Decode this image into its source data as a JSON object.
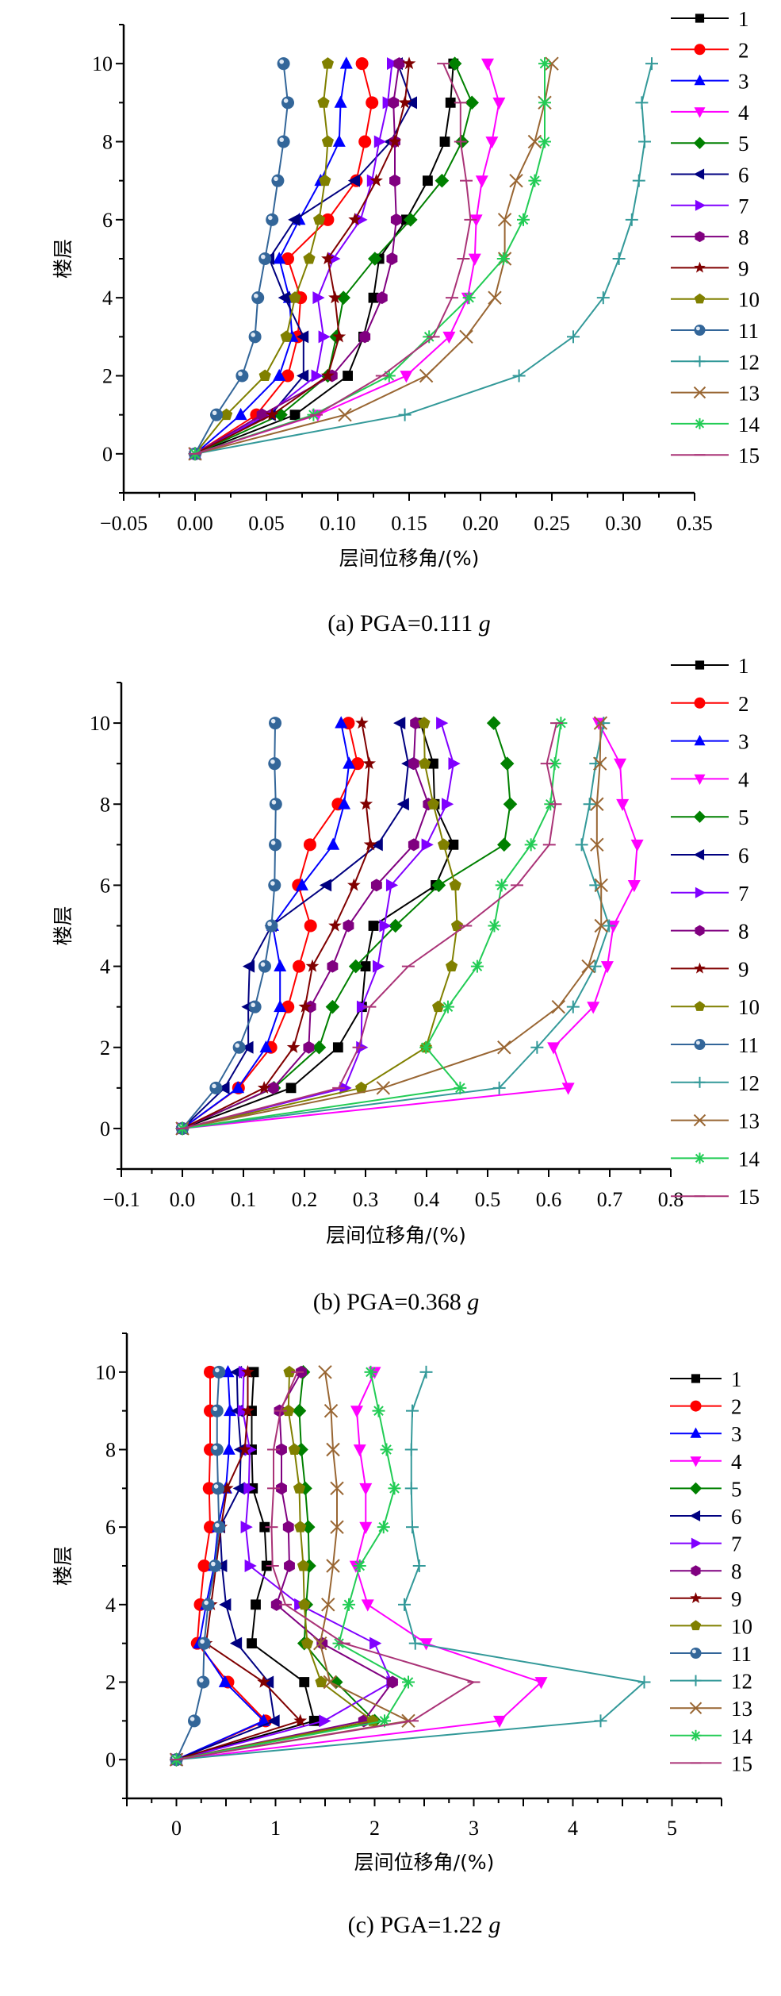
{
  "legend_entries": [
    "1",
    "2",
    "3",
    "4",
    "5",
    "6",
    "7",
    "8",
    "9",
    "10",
    "11",
    "12",
    "13",
    "14",
    "15"
  ],
  "series_styles": [
    {
      "color": "#000000",
      "marker": "square"
    },
    {
      "color": "#ff0000",
      "marker": "circle"
    },
    {
      "color": "#0000ff",
      "marker": "triangle-up"
    },
    {
      "color": "#ff00ff",
      "marker": "triangle-down"
    },
    {
      "color": "#008000",
      "marker": "diamond"
    },
    {
      "color": "#000080",
      "marker": "triangle-left"
    },
    {
      "color": "#8000ff",
      "marker": "triangle-right"
    },
    {
      "color": "#800080",
      "marker": "hexagon"
    },
    {
      "color": "#800000",
      "marker": "star"
    },
    {
      "color": "#808000",
      "marker": "pentagon"
    },
    {
      "color": "#336699",
      "marker": "sphere"
    },
    {
      "color": "#339999",
      "marker": "plus"
    },
    {
      "color": "#996633",
      "marker": "cross"
    },
    {
      "color": "#22cc55",
      "marker": "asterisk"
    },
    {
      "color": "#aa3377",
      "marker": "dash"
    }
  ],
  "chart_data": [
    {
      "type": "line",
      "title": "(a) PGA=0.111 g",
      "caption_prefix": "(a) PGA=0.111 ",
      "caption_unit": "g",
      "xlabel": "层间位移角/(%)",
      "ylabel": "楼层",
      "xlim": [
        -0.05,
        0.35
      ],
      "ylim": [
        -1,
        11
      ],
      "xticks": [
        -0.05,
        0.0,
        0.05,
        0.1,
        0.15,
        0.2,
        0.25,
        0.3,
        0.35
      ],
      "xtick_labels": [
        "−0.05",
        "0.00",
        "0.05",
        "0.10",
        "0.15",
        "0.20",
        "0.25",
        "0.30",
        "0.35"
      ],
      "yticks": [
        0,
        2,
        4,
        6,
        8,
        10
      ],
      "ytick_labels": [
        "0",
        "2",
        "4",
        "6",
        "8",
        "10"
      ],
      "legend_position": "right",
      "floors": [
        0,
        1,
        2,
        3,
        4,
        5,
        6,
        7,
        8,
        9,
        10
      ],
      "series": [
        {
          "name": "1",
          "values": [
            0,
            0.07,
            0.107,
            0.118,
            0.125,
            0.129,
            0.148,
            0.163,
            0.175,
            0.179,
            0.181
          ]
        },
        {
          "name": "2",
          "values": [
            0,
            0.043,
            0.065,
            0.072,
            0.074,
            0.065,
            0.093,
            0.113,
            0.119,
            0.124,
            0.117
          ]
        },
        {
          "name": "3",
          "values": [
            0,
            0.032,
            0.059,
            0.068,
            0.066,
            0.059,
            0.073,
            0.088,
            0.101,
            0.102,
            0.106
          ]
        },
        {
          "name": "4",
          "values": [
            0,
            0.086,
            0.148,
            0.178,
            0.191,
            0.196,
            0.197,
            0.201,
            0.208,
            0.213,
            0.205
          ]
        },
        {
          "name": "5",
          "values": [
            0,
            0.06,
            0.093,
            0.099,
            0.104,
            0.126,
            0.151,
            0.173,
            0.187,
            0.194,
            0.182
          ]
        },
        {
          "name": "6",
          "values": [
            0,
            0.053,
            0.076,
            0.076,
            0.063,
            0.052,
            0.07,
            0.112,
            0.137,
            0.152,
            0.142
          ]
        },
        {
          "name": "7",
          "values": [
            0,
            0.05,
            0.085,
            0.09,
            0.086,
            0.097,
            0.116,
            0.124,
            0.129,
            0.135,
            0.138
          ]
        },
        {
          "name": "8",
          "values": [
            0,
            0.047,
            0.096,
            0.119,
            0.131,
            0.138,
            0.141,
            0.14,
            0.14,
            0.139,
            0.143
          ]
        },
        {
          "name": "9",
          "values": [
            0,
            0.054,
            0.093,
            0.101,
            0.098,
            0.093,
            0.112,
            0.127,
            0.14,
            0.147,
            0.15
          ]
        },
        {
          "name": "10",
          "values": [
            0,
            0.022,
            0.049,
            0.064,
            0.07,
            0.08,
            0.087,
            0.091,
            0.093,
            0.09,
            0.093
          ]
        },
        {
          "name": "11",
          "values": [
            0,
            0.015,
            0.033,
            0.042,
            0.044,
            0.049,
            0.054,
            0.058,
            0.062,
            0.065,
            0.062
          ]
        },
        {
          "name": "12",
          "values": [
            0,
            0.147,
            0.227,
            0.265,
            0.286,
            0.297,
            0.306,
            0.311,
            0.315,
            0.313,
            0.32
          ]
        },
        {
          "name": "13",
          "values": [
            0,
            0.105,
            0.162,
            0.19,
            0.21,
            0.217,
            0.217,
            0.225,
            0.238,
            0.245,
            0.25
          ]
        },
        {
          "name": "14",
          "values": [
            0,
            0.083,
            0.136,
            0.164,
            0.192,
            0.216,
            0.23,
            0.238,
            0.245,
            0.245,
            0.245
          ]
        },
        {
          "name": "15",
          "values": [
            0,
            0.085,
            0.131,
            0.167,
            0.18,
            0.188,
            0.193,
            0.19,
            0.186,
            0.186,
            0.174
          ]
        }
      ]
    },
    {
      "type": "line",
      "title": "(b) PGA=0.368 g",
      "caption_prefix": "(b) PGA=0.368 ",
      "caption_unit": "g",
      "xlabel": "层间位移角/(%)",
      "ylabel": "楼层",
      "xlim": [
        -0.1,
        0.8
      ],
      "ylim": [
        -1,
        11
      ],
      "xticks": [
        -0.1,
        0.0,
        0.1,
        0.2,
        0.3,
        0.4,
        0.5,
        0.6,
        0.7,
        0.8
      ],
      "xtick_labels": [
        "−0.1",
        "0.0",
        "0.1",
        "0.2",
        "0.3",
        "0.4",
        "0.5",
        "0.6",
        "0.7",
        "0.8"
      ],
      "yticks": [
        0,
        2,
        4,
        6,
        8,
        10
      ],
      "ytick_labels": [
        "0",
        "2",
        "4",
        "6",
        "8",
        "10"
      ],
      "legend_position": "right",
      "floors": [
        0,
        1,
        2,
        3,
        4,
        5,
        6,
        7,
        8,
        9,
        10
      ],
      "series": [
        {
          "name": "1",
          "values": [
            0,
            0.178,
            0.255,
            0.294,
            0.3,
            0.313,
            0.415,
            0.444,
            0.413,
            0.411,
            0.39
          ]
        },
        {
          "name": "2",
          "values": [
            0,
            0.092,
            0.145,
            0.173,
            0.191,
            0.21,
            0.19,
            0.209,
            0.255,
            0.287,
            0.272
          ]
        },
        {
          "name": "3",
          "values": [
            0,
            0.091,
            0.137,
            0.16,
            0.16,
            0.148,
            0.196,
            0.247,
            0.265,
            0.273,
            0.26
          ]
        },
        {
          "name": "4",
          "values": [
            0,
            0.632,
            0.608,
            0.673,
            0.696,
            0.706,
            0.74,
            0.745,
            0.721,
            0.717,
            0.682
          ]
        },
        {
          "name": "5",
          "values": [
            0,
            0.15,
            0.224,
            0.246,
            0.284,
            0.349,
            0.42,
            0.527,
            0.537,
            0.532,
            0.51
          ]
        },
        {
          "name": "6",
          "values": [
            0,
            0.069,
            0.108,
            0.108,
            0.11,
            0.146,
            0.236,
            0.32,
            0.363,
            0.37,
            0.357
          ]
        },
        {
          "name": "7",
          "values": [
            0,
            0.266,
            0.293,
            0.294,
            0.32,
            0.331,
            0.342,
            0.4,
            0.433,
            0.444,
            0.424
          ]
        },
        {
          "name": "8",
          "values": [
            0,
            0.149,
            0.207,
            0.21,
            0.246,
            0.272,
            0.318,
            0.379,
            0.403,
            0.379,
            0.382
          ]
        },
        {
          "name": "9",
          "values": [
            0,
            0.134,
            0.182,
            0.201,
            0.213,
            0.25,
            0.281,
            0.308,
            0.301,
            0.306,
            0.294
          ]
        },
        {
          "name": "10",
          "values": [
            0,
            0.293,
            0.399,
            0.419,
            0.441,
            0.45,
            0.447,
            0.428,
            0.411,
            0.397,
            0.396
          ]
        },
        {
          "name": "11",
          "values": [
            0,
            0.055,
            0.093,
            0.119,
            0.135,
            0.146,
            0.151,
            0.152,
            0.153,
            0.151,
            0.152
          ]
        },
        {
          "name": "12",
          "values": [
            0,
            0.519,
            0.581,
            0.64,
            0.676,
            0.699,
            0.677,
            0.654,
            0.667,
            0.677,
            0.69
          ]
        },
        {
          "name": "13",
          "values": [
            0,
            0.329,
            0.527,
            0.616,
            0.665,
            0.686,
            0.686,
            0.679,
            0.679,
            0.684,
            0.685
          ]
        },
        {
          "name": "14",
          "values": [
            0,
            0.455,
            0.399,
            0.435,
            0.483,
            0.511,
            0.523,
            0.571,
            0.603,
            0.61,
            0.62
          ]
        },
        {
          "name": "15",
          "values": [
            0,
            0.256,
            0.289,
            0.307,
            0.37,
            0.464,
            0.548,
            0.601,
            0.611,
            0.597,
            0.613
          ]
        }
      ]
    },
    {
      "type": "line",
      "title": "(c) PGA=1.22 g",
      "caption_prefix": "(c) PGA=1.22 ",
      "caption_unit": "g",
      "xlabel": "层间位移角/(%)",
      "ylabel": "楼层",
      "xlim": [
        -0.5,
        5.5
      ],
      "ylim": [
        -1,
        11
      ],
      "xticks": [
        -0.5,
        0,
        0.5,
        1,
        1.5,
        2,
        2.5,
        3,
        3.5,
        4,
        4.5,
        5,
        5.5
      ],
      "xtick_labels": [
        "",
        "0",
        "",
        "1",
        "",
        "2",
        "",
        "3",
        "",
        "4",
        "",
        "5",
        ""
      ],
      "yticks": [
        0,
        2,
        4,
        6,
        8,
        10
      ],
      "ytick_labels": [
        "0",
        "2",
        "4",
        "6",
        "8",
        "10"
      ],
      "legend_position": "right",
      "floors": [
        0,
        1,
        2,
        3,
        4,
        5,
        6,
        7,
        8,
        9,
        10
      ],
      "series": [
        {
          "name": "1",
          "values": [
            0,
            1.39,
            1.29,
            0.76,
            0.8,
            0.91,
            0.89,
            0.77,
            0.76,
            0.76,
            0.78
          ]
        },
        {
          "name": "2",
          "values": [
            0,
            0.9,
            0.52,
            0.21,
            0.24,
            0.28,
            0.34,
            0.33,
            0.34,
            0.34,
            0.34
          ]
        },
        {
          "name": "3",
          "values": [
            0,
            0.88,
            0.49,
            0.23,
            0.3,
            0.38,
            0.42,
            0.5,
            0.53,
            0.54,
            0.52
          ]
        },
        {
          "name": "4",
          "values": [
            0,
            3.26,
            3.68,
            2.52,
            1.93,
            1.81,
            1.91,
            1.91,
            1.85,
            1.82,
            2.0
          ]
        },
        {
          "name": "5",
          "values": [
            0,
            2.0,
            1.61,
            1.29,
            1.31,
            1.34,
            1.33,
            1.3,
            1.26,
            1.24,
            1.28
          ]
        },
        {
          "name": "6",
          "values": [
            0,
            0.99,
            0.93,
            0.61,
            0.5,
            0.46,
            0.44,
            0.64,
            0.65,
            0.62,
            0.61
          ]
        },
        {
          "name": "7",
          "values": [
            0,
            1.49,
            2.17,
            2.0,
            1.24,
            0.74,
            0.7,
            0.73,
            0.74,
            0.67,
            0.68
          ]
        },
        {
          "name": "8",
          "values": [
            0,
            1.89,
            2.18,
            1.47,
            1.01,
            1.14,
            1.13,
            1.06,
            1.06,
            1.04,
            1.26
          ]
        },
        {
          "name": "9",
          "values": [
            0,
            1.25,
            0.88,
            0.3,
            0.35,
            0.4,
            0.45,
            0.51,
            0.69,
            0.72,
            0.72
          ]
        },
        {
          "name": "10",
          "values": [
            0,
            1.98,
            1.46,
            1.32,
            1.29,
            1.28,
            1.25,
            1.24,
            1.19,
            1.13,
            1.14
          ]
        },
        {
          "name": "11",
          "values": [
            0,
            0.18,
            0.27,
            0.28,
            0.32,
            0.39,
            0.43,
            0.42,
            0.41,
            0.41,
            0.43
          ]
        },
        {
          "name": "12",
          "values": [
            0,
            4.28,
            4.72,
            2.41,
            2.3,
            2.45,
            2.38,
            2.37,
            2.37,
            2.38,
            2.52
          ]
        },
        {
          "name": "13",
          "values": [
            0,
            2.34,
            1.55,
            1.45,
            1.53,
            1.58,
            1.62,
            1.62,
            1.58,
            1.56,
            1.5
          ]
        },
        {
          "name": "14",
          "values": [
            0,
            2.1,
            2.34,
            1.64,
            1.74,
            1.85,
            2.09,
            2.2,
            2.12,
            2.04,
            1.96
          ]
        },
        {
          "name": "15",
          "values": [
            0,
            2.38,
            3.0,
            1.69,
            1.1,
            0.97,
            0.96,
            0.98,
            0.98,
            1.05,
            1.22
          ]
        }
      ]
    }
  ]
}
